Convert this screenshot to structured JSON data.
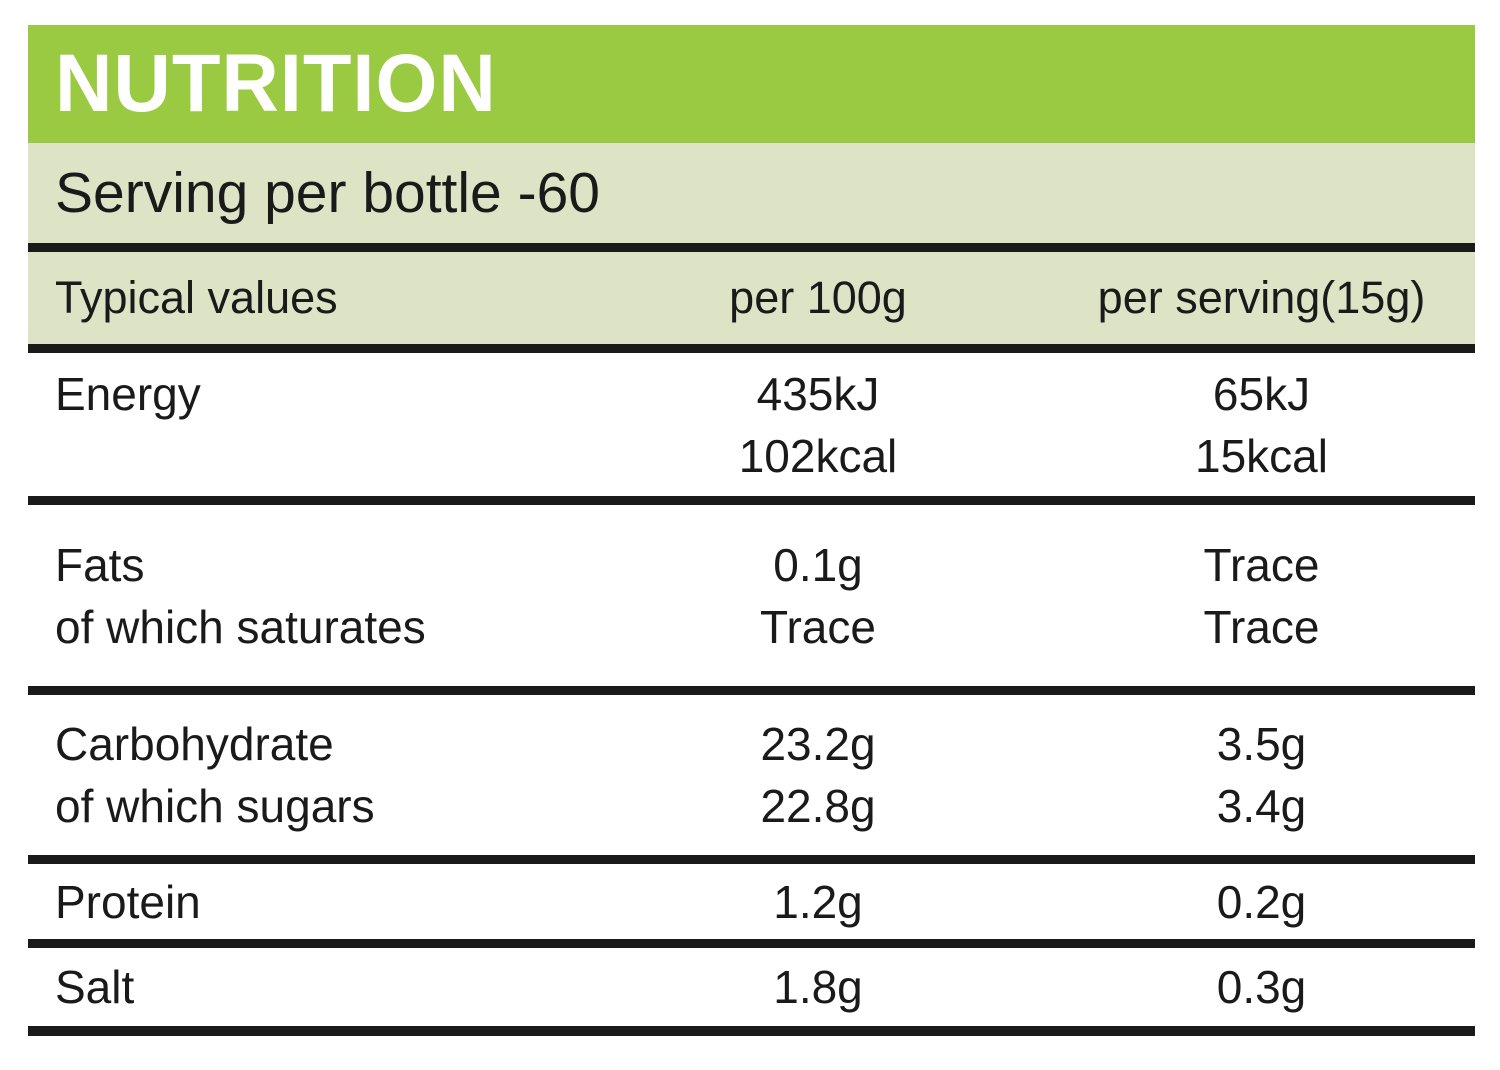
{
  "label": {
    "title": "NUTRITION",
    "serving_line": "Serving per bottle -60",
    "columns": {
      "name": "Typical values",
      "per100g": "per 100g",
      "perServing": "per serving(15g)"
    },
    "rows": [
      {
        "names": [
          "Energy"
        ],
        "per100g": [
          "435kJ",
          "102kcal"
        ],
        "perServing": [
          "65kJ",
          "15kcal"
        ]
      },
      {
        "names": [
          "Fats",
          "of which saturates"
        ],
        "per100g": [
          "0.1g",
          "Trace"
        ],
        "perServing": [
          "Trace",
          "Trace"
        ]
      },
      {
        "names": [
          "Carbohydrate",
          "of which sugars"
        ],
        "per100g": [
          "23.2g",
          "22.8g"
        ],
        "perServing": [
          "3.5g",
          "3.4g"
        ]
      },
      {
        "names": [
          "Protein"
        ],
        "per100g": [
          "1.2g"
        ],
        "perServing": [
          "0.2g"
        ]
      },
      {
        "names": [
          "Salt"
        ],
        "per100g": [
          "1.8g"
        ],
        "perServing": [
          "0.3g"
        ]
      }
    ],
    "colors": {
      "header_green": "#9ac942",
      "band_green": "#dde4c6",
      "rule_black": "#1a1a1a",
      "title_text": "#ffffff",
      "body_text": "#1a1a1a"
    }
  }
}
